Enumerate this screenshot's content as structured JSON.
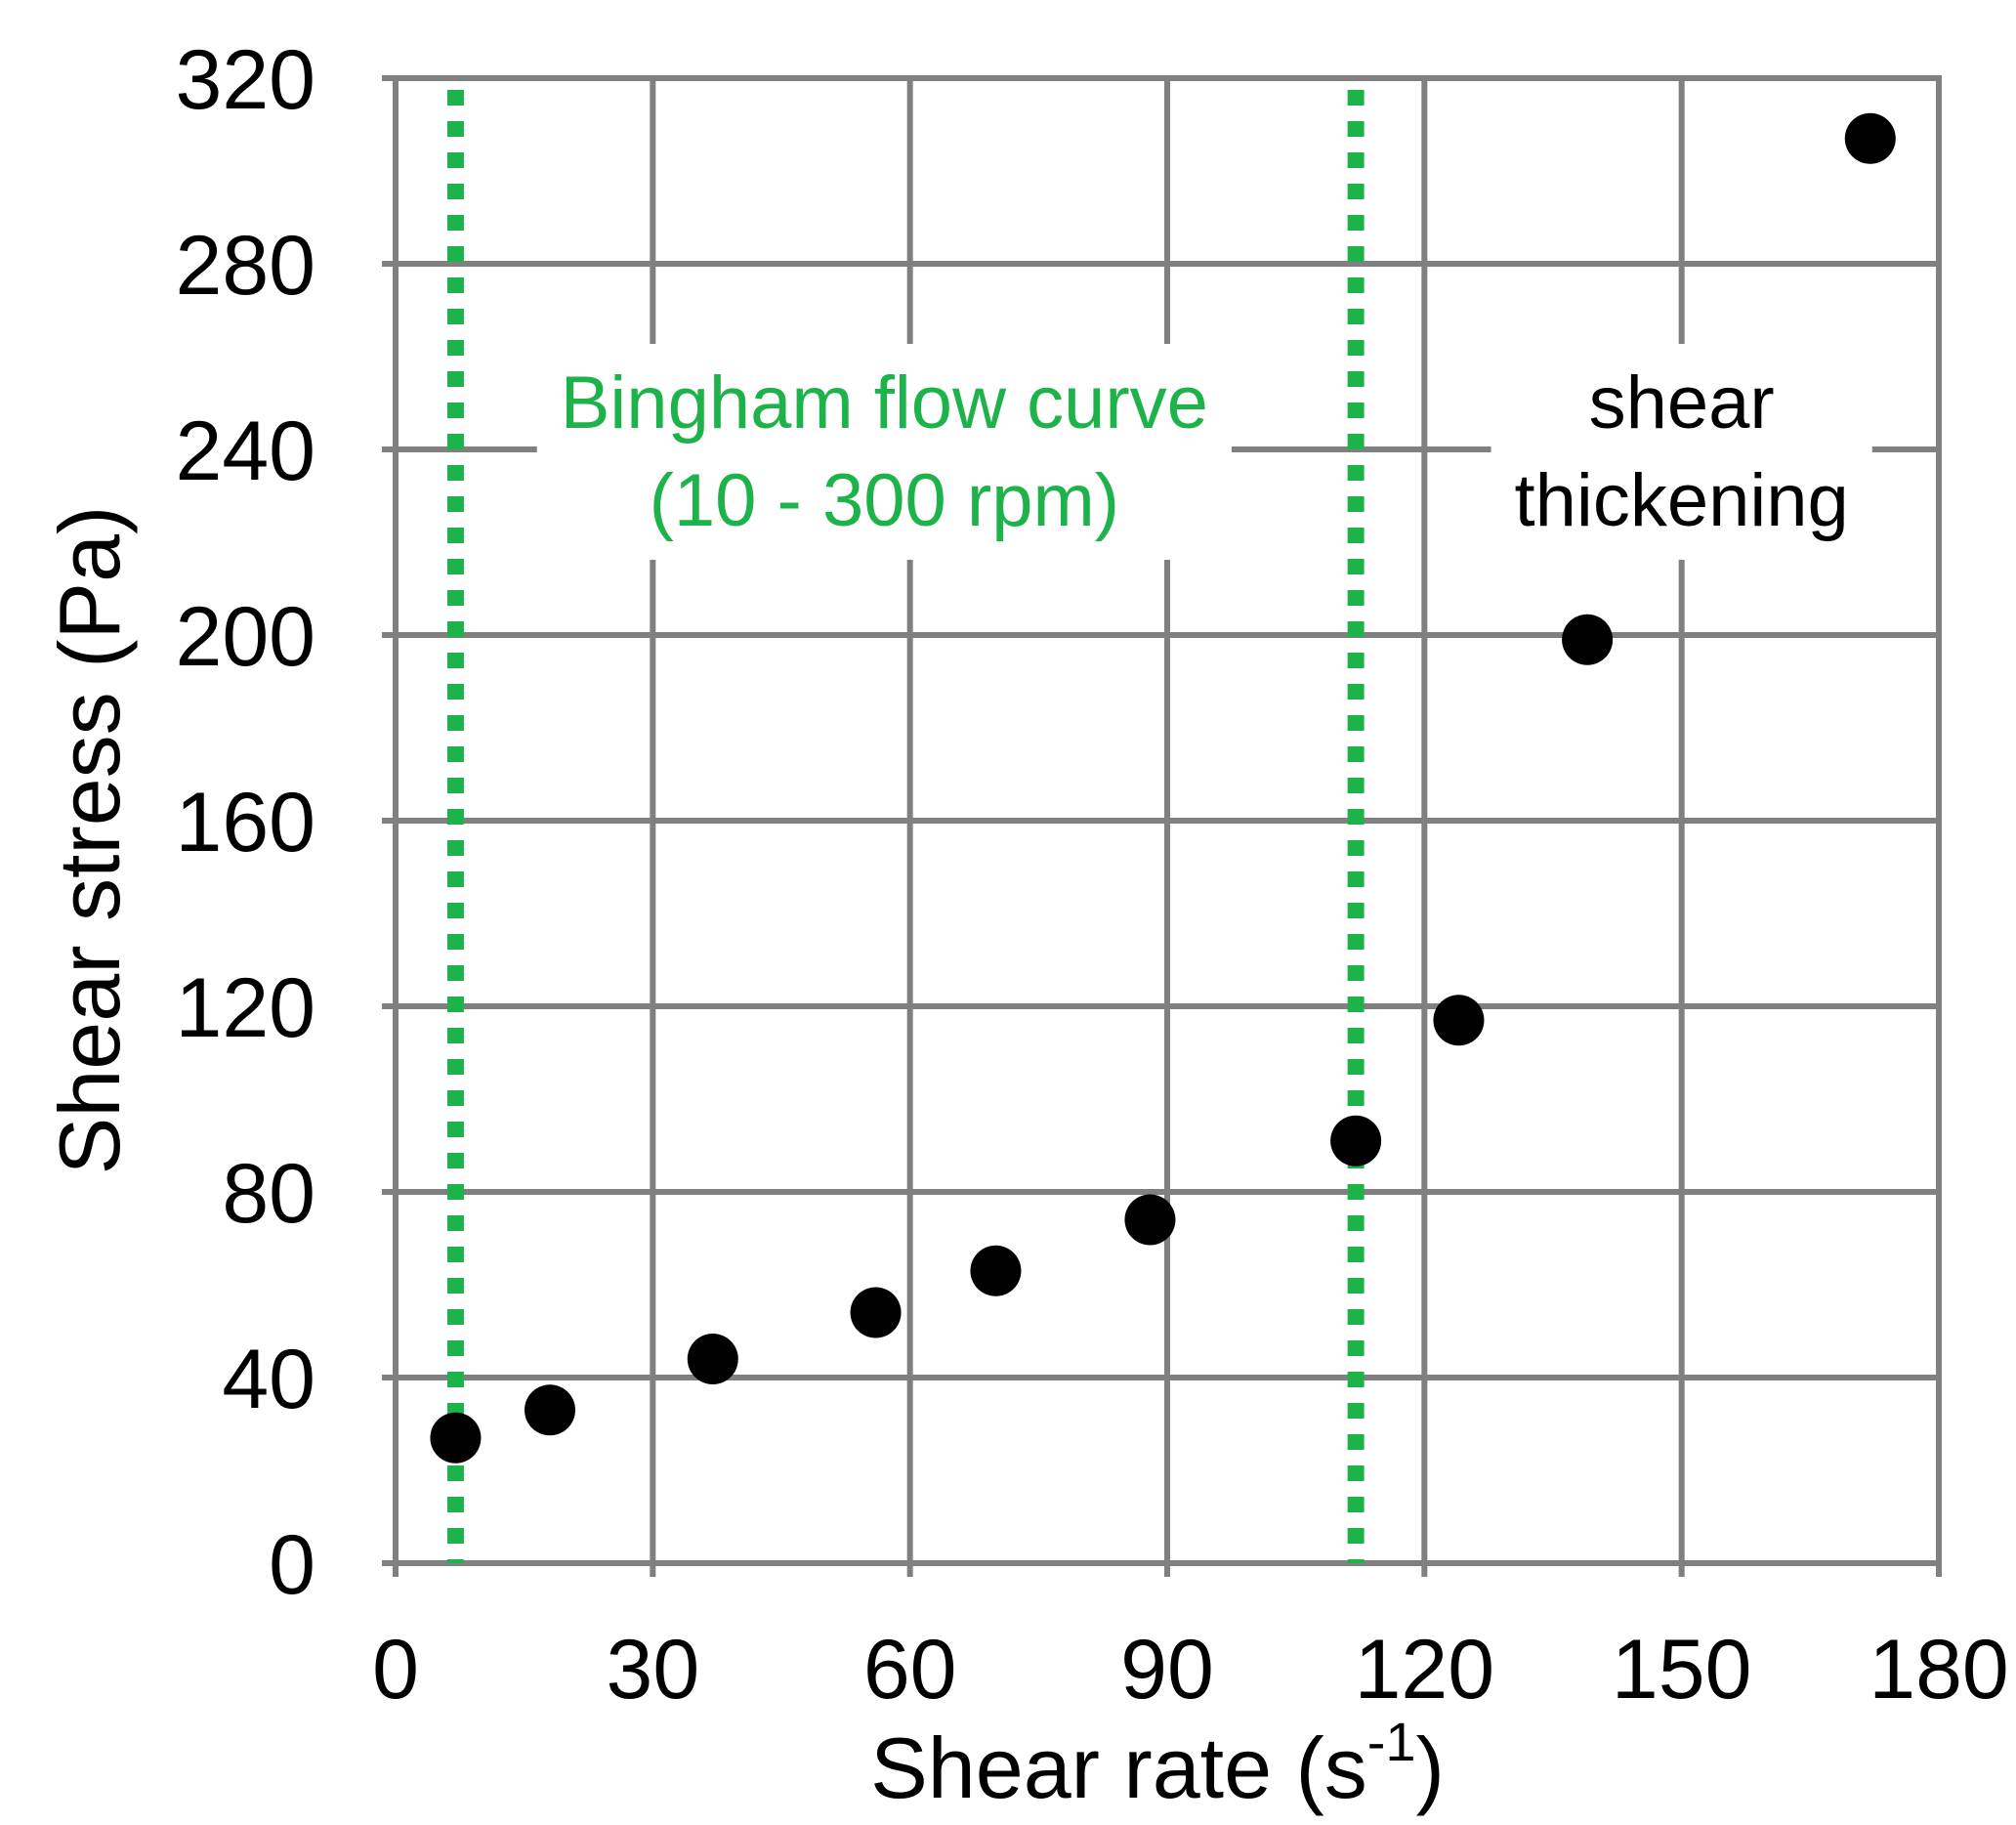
{
  "chart_data": {
    "type": "scatter",
    "title": "",
    "xlabel": "Shear rate (s",
    "xlabel_sup": "-1",
    "xlabel_close": ")",
    "ylabel": "Shear stress (Pa)",
    "xlim": [
      0,
      180
    ],
    "ylim": [
      0,
      320
    ],
    "xticks": [
      0,
      30,
      60,
      90,
      120,
      150,
      180
    ],
    "yticks": [
      0,
      40,
      80,
      120,
      160,
      200,
      240,
      280,
      320
    ],
    "xtick_labels": [
      "0",
      "30",
      "60",
      "90",
      "120",
      "150",
      "180"
    ],
    "ytick_labels": [
      "0",
      "40",
      "80",
      "120",
      "160",
      "200",
      "240",
      "280",
      "320"
    ],
    "grid": true,
    "series": [
      {
        "x": [
          7,
          18,
          37,
          56,
          70,
          88,
          112,
          124,
          139,
          172
        ],
        "y": [
          27,
          33,
          44,
          54,
          63,
          74,
          91,
          117,
          199,
          307
        ]
      }
    ],
    "vlines": [
      {
        "x": 7,
        "style": "dotted",
        "color": "#1db34a"
      },
      {
        "x": 112,
        "style": "dotted",
        "color": "#1db34a"
      }
    ],
    "annotations": [
      {
        "lines": [
          "Bingham flow curve",
          "(10 - 300 rpm)"
        ],
        "color": "#1db34a",
        "x": 57,
        "y": 240
      },
      {
        "lines": [
          "shear",
          "thickening"
        ],
        "color": "#000000",
        "x": 150,
        "y": 240
      }
    ],
    "colors": {
      "grid": "#808080",
      "marker": "#000000",
      "vline": "#1db34a"
    }
  }
}
